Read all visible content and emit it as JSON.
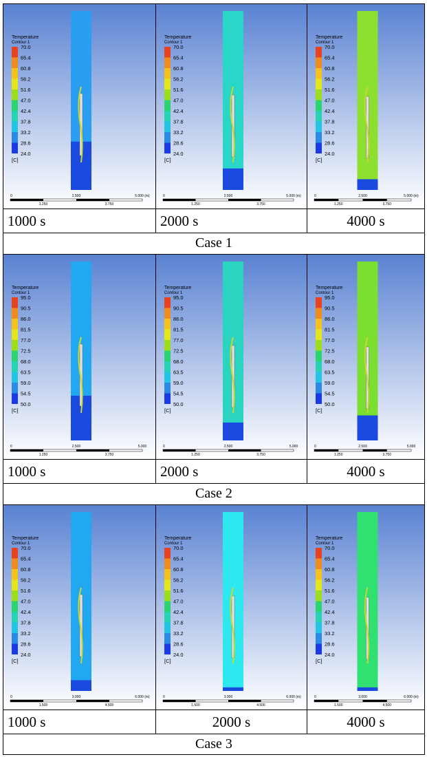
{
  "cases": [
    {
      "label": "Case 1",
      "legend": {
        "title": "Temperature",
        "subtitle": "Contour 1",
        "values": [
          "70.0",
          "65.4",
          "60.8",
          "56.2",
          "51.6",
          "47.0",
          "42.4",
          "37.8",
          "33.2",
          "28.6",
          "24.0"
        ],
        "unit": "[C]"
      },
      "scale": {
        "top": [
          "0",
          "2.500",
          "5.000 (m)"
        ],
        "bottom": [
          "1.250",
          "3.750"
        ]
      },
      "times": [
        "1000 s",
        "2000 s",
        "4000 s"
      ]
    },
    {
      "label": "Case 2",
      "legend": {
        "title": "Temperature",
        "subtitle": "Contour 1",
        "values": [
          "95.0",
          "90.5",
          "86.0",
          "81.5",
          "77.0",
          "72.5",
          "68.0",
          "63.5",
          "59.0",
          "54.5",
          "50.0"
        ],
        "unit": "[C]"
      },
      "scale": {
        "top": [
          "0",
          "2.500",
          "5.000"
        ],
        "bottom": [
          "1.250",
          "3.750"
        ]
      },
      "times": [
        "1000 s",
        "2000 s",
        "4000 s"
      ]
    },
    {
      "label": "Case 3",
      "legend": {
        "title": "Temperature",
        "subtitle": "Contour 1",
        "values": [
          "70.0",
          "65.4",
          "60.8",
          "56.2",
          "51.6",
          "47.0",
          "42.4",
          "37.8",
          "33.2",
          "28.6",
          "24.0"
        ],
        "unit": "[C]"
      },
      "scale": {
        "top": [
          "0",
          "3.000",
          "6.000 (m)"
        ],
        "bottom": [
          "1.500",
          "4.500"
        ]
      },
      "times": [
        "1000 s",
        "2000 s",
        "4000 s"
      ]
    }
  ]
}
